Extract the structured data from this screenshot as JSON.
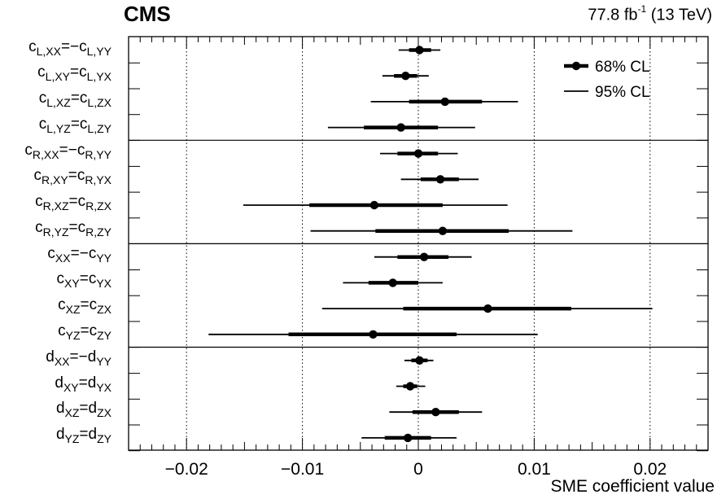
{
  "header": {
    "experiment": "CMS",
    "lumi_value": "77.8 fb",
    "lumi_exp": "-1",
    "lumi_energy": " (13 TeV)"
  },
  "chart_data": {
    "type": "scatter",
    "title": "",
    "xlabel": "SME coefficient value",
    "xlim": [
      -0.025,
      0.025
    ],
    "xticks": [
      -0.02,
      -0.01,
      0,
      0.01,
      0.02
    ],
    "xtick_labels": [
      "−0.02",
      "−0.01",
      "0",
      "0.01",
      "0.02"
    ],
    "grid_lines_x": [
      -0.02,
      -0.01,
      0.01,
      0.02
    ],
    "zero_line": true,
    "legend": {
      "position": "top-right",
      "entries": [
        {
          "label": "68% CL",
          "style": "thick line with marker"
        },
        {
          "label": "95% CL",
          "style": "thin line"
        }
      ]
    },
    "groups": [
      {
        "name": "cL",
        "rows": [
          {
            "label": {
              "b1": "c",
              "s1": "L,XX",
              "rel": "=−",
              "b2": "c",
              "s2": "L,YY"
            },
            "value": 0.0001,
            "cl68": [
              -0.0008,
              0.0011
            ],
            "cl95": [
              -0.0017,
              0.0019
            ]
          },
          {
            "label": {
              "b1": "c",
              "s1": "L,XY",
              "rel": "=",
              "b2": "c",
              "s2": "L,YX"
            },
            "value": -0.0011,
            "cl68": [
              -0.0021,
              -0.0001
            ],
            "cl95": [
              -0.0031,
              0.0009
            ]
          },
          {
            "label": {
              "b1": "c",
              "s1": "L,XZ",
              "rel": "=",
              "b2": "c",
              "s2": "L,ZX"
            },
            "value": 0.0023,
            "cl68": [
              -0.0008,
              0.0055
            ],
            "cl95": [
              -0.0041,
              0.0086
            ]
          },
          {
            "label": {
              "b1": "c",
              "s1": "L,YZ",
              "rel": "=",
              "b2": "c",
              "s2": "L,ZY"
            },
            "value": -0.0015,
            "cl68": [
              -0.0047,
              0.0017
            ],
            "cl95": [
              -0.0078,
              0.0049
            ]
          }
        ]
      },
      {
        "name": "cR",
        "rows": [
          {
            "label": {
              "b1": "c",
              "s1": "R,XX",
              "rel": "=−",
              "b2": "c",
              "s2": "R,YY"
            },
            "value": 0.0,
            "cl68": [
              -0.0018,
              0.0017
            ],
            "cl95": [
              -0.0033,
              0.0034
            ]
          },
          {
            "label": {
              "b1": "c",
              "s1": "R,XY",
              "rel": "=",
              "b2": "c",
              "s2": "R,YX"
            },
            "value": 0.0019,
            "cl68": [
              0.0002,
              0.0035
            ],
            "cl95": [
              -0.0015,
              0.0052
            ]
          },
          {
            "label": {
              "b1": "c",
              "s1": "R,XZ",
              "rel": "=",
              "b2": "c",
              "s2": "R,ZX"
            },
            "value": -0.0038,
            "cl68": [
              -0.0094,
              0.0021
            ],
            "cl95": [
              -0.0151,
              0.0077
            ]
          },
          {
            "label": {
              "b1": "c",
              "s1": "R,YZ",
              "rel": "=",
              "b2": "c",
              "s2": "R,ZY"
            },
            "value": 0.0021,
            "cl68": [
              -0.0037,
              0.0078
            ],
            "cl95": [
              -0.0093,
              0.0133
            ]
          }
        ]
      },
      {
        "name": "c",
        "rows": [
          {
            "label": {
              "b1": "c",
              "s1": "XX",
              "rel": "=−",
              "b2": "c",
              "s2": "YY"
            },
            "value": 0.0005,
            "cl68": [
              -0.0018,
              0.0026
            ],
            "cl95": [
              -0.0038,
              0.0046
            ]
          },
          {
            "label": {
              "b1": "c",
              "s1": "XY",
              "rel": "=",
              "b2": "c",
              "s2": "YX"
            },
            "value": -0.0022,
            "cl68": [
              -0.0043,
              0.0
            ],
            "cl95": [
              -0.0065,
              0.0021
            ]
          },
          {
            "label": {
              "b1": "c",
              "s1": "XZ",
              "rel": "=",
              "b2": "c",
              "s2": "ZX"
            },
            "value": 0.006,
            "cl68": [
              -0.0013,
              0.0132
            ],
            "cl95": [
              -0.0083,
              0.0202
            ]
          },
          {
            "label": {
              "b1": "c",
              "s1": "YZ",
              "rel": "=",
              "b2": "c",
              "s2": "ZY"
            },
            "value": -0.0039,
            "cl68": [
              -0.0112,
              0.0033
            ],
            "cl95": [
              -0.0181,
              0.0103
            ]
          }
        ]
      },
      {
        "name": "d",
        "rows": [
          {
            "label": {
              "b1": "d",
              "s1": "XX",
              "rel": "=−",
              "b2": "d",
              "s2": "YY"
            },
            "value": 0.0001,
            "cl68": [
              -0.0006,
              0.0008
            ],
            "cl95": [
              -0.0012,
              0.0013
            ]
          },
          {
            "label": {
              "b1": "d",
              "s1": "XY",
              "rel": "=",
              "b2": "d",
              "s2": "YX"
            },
            "value": -0.0007,
            "cl68": [
              -0.0013,
              -0.0001
            ],
            "cl95": [
              -0.0019,
              0.0006
            ]
          },
          {
            "label": {
              "b1": "d",
              "s1": "XZ",
              "rel": "=",
              "b2": "d",
              "s2": "ZX"
            },
            "value": 0.0015,
            "cl68": [
              -0.0005,
              0.0035
            ],
            "cl95": [
              -0.0025,
              0.0055
            ]
          },
          {
            "label": {
              "b1": "d",
              "s1": "YZ",
              "rel": "=",
              "b2": "d",
              "s2": "ZY"
            },
            "value": -0.0009,
            "cl68": [
              -0.0029,
              0.0011
            ],
            "cl95": [
              -0.0049,
              0.0033
            ]
          }
        ]
      }
    ]
  }
}
